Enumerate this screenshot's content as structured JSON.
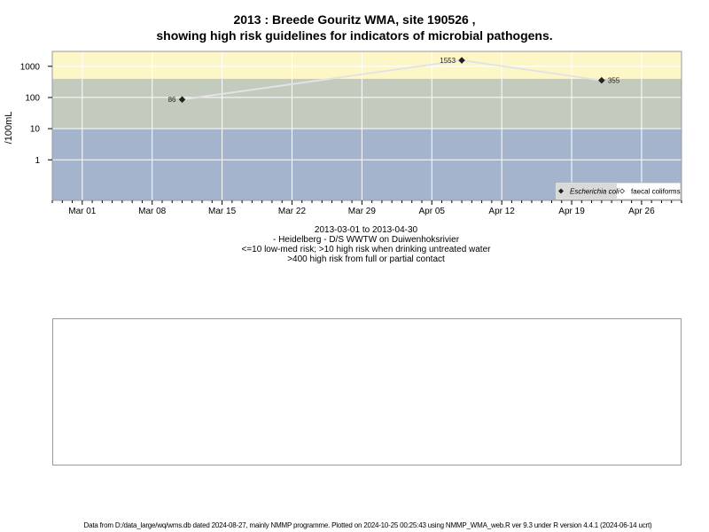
{
  "header": {
    "title_line1": "2013 : Breede Gouritz WMA, site 190526 ,",
    "title_line2": "showing high risk guidelines for indicators of microbial pathogens."
  },
  "subtitle": {
    "line1": "2013-03-01 to 2013-04-30",
    "line2": "- Heidelberg - D/S WWTW on Duiwenhoksrivier",
    "line3": "<=10 low-med risk; >10 high risk when drinking untreated water",
    "line4": ">400 high risk from full or partial contact"
  },
  "footer": {
    "text": "Data from D:/data_large/wq/wms.db dated 2024-08-27, mainly NMMP programme. Plotted on 2024-10-25 00:25:43 using NMMP_WMA_web.R ver 9.3 under R version 4.4.1 (2024-06-14 ucrt)"
  },
  "colors": {
    "band_low": "#a3b4cc",
    "band_mid": "#c3cbbe",
    "band_high": "#fdf7c8",
    "gridline": "#ffffff",
    "series_line": "#e3e3e3",
    "marker": "#222222"
  },
  "chart_data": {
    "type": "line",
    "title": "2013 : Breede Gouritz WMA, site 190526 , showing high risk guidelines for indicators of microbial pathogens.",
    "ylabel": "/100mL",
    "y_scale": "log",
    "ylim": [
      0.05,
      3000
    ],
    "xlim": [
      "2013-02-26",
      "2013-04-30"
    ],
    "x_ticks": [
      "2013-03-01",
      "2013-03-08",
      "2013-03-15",
      "2013-03-22",
      "2013-03-29",
      "2013-04-05",
      "2013-04-12",
      "2013-04-19",
      "2013-04-26"
    ],
    "x_tick_labels": [
      "Mar 01",
      "Mar 08",
      "Mar 15",
      "Mar 22",
      "Mar 29",
      "Apr 05",
      "Apr 12",
      "Apr 19",
      "Apr 26"
    ],
    "y_ticks": [
      1,
      10,
      100,
      1000
    ],
    "y_tick_labels": [
      "1",
      "10",
      "100",
      "1000"
    ],
    "bands": [
      {
        "from": 0.05,
        "to": 10,
        "risk": "low-med"
      },
      {
        "from": 10,
        "to": 400,
        "risk": "high (drinking)"
      },
      {
        "from": 400,
        "to": 3000,
        "risk": "high (contact)"
      }
    ],
    "grid": true,
    "legend_position": "bottom-right",
    "series": [
      {
        "name": "Escherichia coli",
        "marker": "filled-diamond",
        "points": [
          {
            "x": "2013-03-11",
            "y": 86,
            "label": "86"
          },
          {
            "x": "2013-04-08",
            "y": 1553,
            "label": "1553"
          },
          {
            "x": "2013-04-22",
            "y": 355,
            "label": "355"
          }
        ]
      },
      {
        "name": "faecal coliforms",
        "marker": "open-diamond",
        "points": []
      }
    ]
  }
}
